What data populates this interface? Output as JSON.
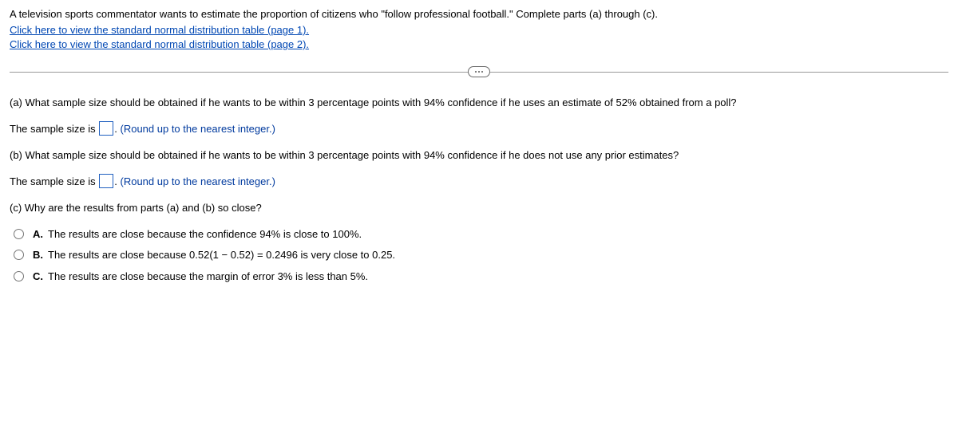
{
  "intro": "A television sports commentator wants to estimate the proportion of citizens who \"follow professional football.\" Complete parts (a) through (c).",
  "links": {
    "page1": "Click here to view the standard normal distribution table (page 1).",
    "page2": "Click here to view the standard normal distribution table (page 2)."
  },
  "parts": {
    "a_question": "(a) What sample size should be obtained if he wants to be within 3 percentage points with 94% confidence if he uses an estimate of 52% obtained from a poll?",
    "a_prefix": "The sample size is ",
    "a_suffix": ". ",
    "a_hint": "(Round up to the nearest integer.)",
    "b_question": "(b) What sample size should be obtained if he wants to be within 3 percentage points with 94% confidence if he does not use any prior estimates?",
    "b_prefix": "The sample size is ",
    "b_suffix": ". ",
    "b_hint": "(Round up to the nearest integer.)",
    "c_question": "(c) Why are the results from parts (a) and (b) so close?"
  },
  "options": [
    {
      "letter": "A.",
      "text": "The results are close because the confidence 94% is close to 100%."
    },
    {
      "letter": "B.",
      "text": "The results are close because 0.52(1 − 0.52) = 0.2496 is very close to 0.25."
    },
    {
      "letter": "C.",
      "text": "The results are close because the margin of error 3% is less than 5%."
    }
  ],
  "colors": {
    "link": "#0047b3",
    "hint": "#003a9e",
    "box_border": "#2060c0",
    "divider": "#9a9a9a"
  }
}
